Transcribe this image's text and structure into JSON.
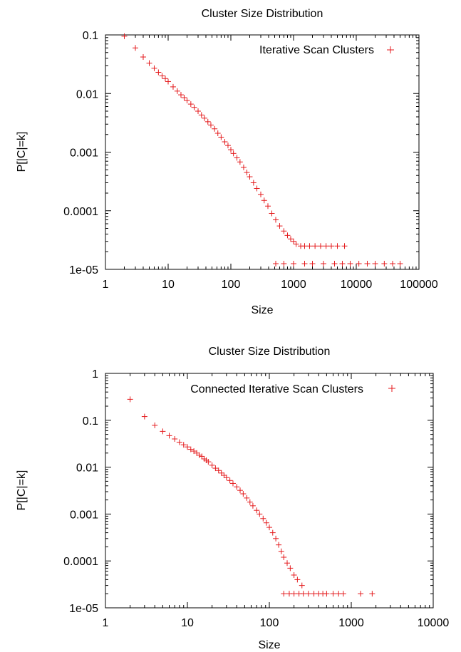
{
  "chart_data": [
    {
      "type": "scatter",
      "title": "Cluster Size Distribution",
      "xlabel": "Size",
      "ylabel": "P[|C|=k]",
      "x_scale": "log",
      "y_scale": "log",
      "xlim": [
        1,
        100000
      ],
      "ylim": [
        1e-05,
        0.1
      ],
      "x_ticks": [
        {
          "value": 1,
          "label": "1"
        },
        {
          "value": 10,
          "label": "10"
        },
        {
          "value": 100,
          "label": "100"
        },
        {
          "value": 1000,
          "label": "1000"
        },
        {
          "value": 10000,
          "label": "10000"
        },
        {
          "value": 100000,
          "label": "100000"
        }
      ],
      "y_ticks": [
        {
          "value": 1e-05,
          "label": "1e-05"
        },
        {
          "value": 0.0001,
          "label": "0.0001"
        },
        {
          "value": 0.001,
          "label": "0.001"
        },
        {
          "value": 0.01,
          "label": "0.01"
        },
        {
          "value": 0.1,
          "label": "0.1"
        }
      ],
      "legend_position": "top-right",
      "series": [
        {
          "name": "Iterative Scan Clusters",
          "color": "#e41a1c",
          "marker": "plus",
          "points": [
            [
              2,
              0.095
            ],
            [
              3,
              0.06
            ],
            [
              4,
              0.042
            ],
            [
              5,
              0.033
            ],
            [
              6,
              0.027
            ],
            [
              7,
              0.023
            ],
            [
              8,
              0.02
            ],
            [
              9,
              0.018
            ],
            [
              10,
              0.016
            ],
            [
              12,
              0.013
            ],
            [
              14,
              0.011
            ],
            [
              16,
              0.0095
            ],
            [
              18,
              0.0085
            ],
            [
              20,
              0.0076
            ],
            [
              23,
              0.0066
            ],
            [
              26,
              0.0058
            ],
            [
              30,
              0.005
            ],
            [
              34,
              0.0043
            ],
            [
              38,
              0.0038
            ],
            [
              43,
              0.0033
            ],
            [
              48,
              0.0029
            ],
            [
              55,
              0.0025
            ],
            [
              62,
              0.0021
            ],
            [
              70,
              0.0018
            ],
            [
              80,
              0.0015
            ],
            [
              90,
              0.0013
            ],
            [
              100,
              0.0011
            ],
            [
              110,
              0.00095
            ],
            [
              125,
              0.0008
            ],
            [
              140,
              0.00068
            ],
            [
              160,
              0.00055
            ],
            [
              180,
              0.00045
            ],
            [
              200,
              0.00038
            ],
            [
              230,
              0.0003
            ],
            [
              260,
              0.00024
            ],
            [
              300,
              0.00019
            ],
            [
              340,
              0.00015
            ],
            [
              390,
              0.00012
            ],
            [
              450,
              9e-05
            ],
            [
              520,
              7e-05
            ],
            [
              600,
              5.5e-05
            ],
            [
              700,
              4.5e-05
            ],
            [
              800,
              3.8e-05
            ],
            [
              900,
              3.3e-05
            ],
            [
              1000,
              3e-05
            ],
            [
              1100,
              2.7e-05
            ],
            [
              1300,
              2.5e-05
            ],
            [
              1500,
              2.5e-05
            ],
            [
              1800,
              2.5e-05
            ],
            [
              2200,
              2.5e-05
            ],
            [
              2700,
              2.5e-05
            ],
            [
              3300,
              2.5e-05
            ],
            [
              4000,
              2.5e-05
            ],
            [
              5000,
              2.5e-05
            ],
            [
              6500,
              2.5e-05
            ],
            [
              520,
              1.25e-05
            ],
            [
              700,
              1.25e-05
            ],
            [
              1000,
              1.25e-05
            ],
            [
              1500,
              1.25e-05
            ],
            [
              2000,
              1.25e-05
            ],
            [
              3000,
              1.25e-05
            ],
            [
              4500,
              1.25e-05
            ],
            [
              6000,
              1.25e-05
            ],
            [
              8000,
              1.25e-05
            ],
            [
              11000,
              1.25e-05
            ],
            [
              15000,
              1.25e-05
            ],
            [
              20000,
              1.25e-05
            ],
            [
              28000,
              1.25e-05
            ],
            [
              38000,
              1.25e-05
            ],
            [
              50000,
              1.25e-05
            ]
          ]
        }
      ]
    },
    {
      "type": "scatter",
      "title": "Cluster Size Distribution",
      "xlabel": "Size",
      "ylabel": "P[|C|=k]",
      "x_scale": "log",
      "y_scale": "log",
      "xlim": [
        1,
        10000
      ],
      "ylim": [
        1e-05,
        1
      ],
      "x_ticks": [
        {
          "value": 1,
          "label": "1"
        },
        {
          "value": 10,
          "label": "10"
        },
        {
          "value": 100,
          "label": "100"
        },
        {
          "value": 1000,
          "label": "1000"
        },
        {
          "value": 10000,
          "label": "10000"
        }
      ],
      "y_ticks": [
        {
          "value": 1e-05,
          "label": "1e-05"
        },
        {
          "value": 0.0001,
          "label": "0.0001"
        },
        {
          "value": 0.001,
          "label": "0.001"
        },
        {
          "value": 0.01,
          "label": "0.01"
        },
        {
          "value": 0.1,
          "label": "0.1"
        },
        {
          "value": 1,
          "label": "1"
        }
      ],
      "legend_position": "top-right",
      "series": [
        {
          "name": "Connected Iterative Scan Clusters",
          "color": "#e41a1c",
          "marker": "plus",
          "points": [
            [
              2,
              0.28
            ],
            [
              3,
              0.12
            ],
            [
              4,
              0.078
            ],
            [
              5,
              0.058
            ],
            [
              6,
              0.047
            ],
            [
              7,
              0.04
            ],
            [
              8,
              0.034
            ],
            [
              9,
              0.03
            ],
            [
              10,
              0.027
            ],
            [
              11,
              0.024
            ],
            [
              12,
              0.022
            ],
            [
              13,
              0.02
            ],
            [
              14,
              0.018
            ],
            [
              15,
              0.017
            ],
            [
              16,
              0.015
            ],
            [
              17,
              0.014
            ],
            [
              18,
              0.013
            ],
            [
              20,
              0.011
            ],
            [
              22,
              0.0095
            ],
            [
              24,
              0.0085
            ],
            [
              26,
              0.0075
            ],
            [
              28,
              0.0067
            ],
            [
              30,
              0.006
            ],
            [
              33,
              0.0052
            ],
            [
              36,
              0.0045
            ],
            [
              40,
              0.0038
            ],
            [
              44,
              0.0032
            ],
            [
              48,
              0.0027
            ],
            [
              53,
              0.0022
            ],
            [
              58,
              0.0018
            ],
            [
              63,
              0.0015
            ],
            [
              70,
              0.0012
            ],
            [
              76,
              0.001
            ],
            [
              84,
              0.0008
            ],
            [
              92,
              0.00065
            ],
            [
              100,
              0.00052
            ],
            [
              110,
              0.0004
            ],
            [
              120,
              0.0003
            ],
            [
              130,
              0.00022
            ],
            [
              140,
              0.00016
            ],
            [
              150,
              0.00012
            ],
            [
              165,
              9e-05
            ],
            [
              180,
              7e-05
            ],
            [
              200,
              5e-05
            ],
            [
              220,
              4e-05
            ],
            [
              250,
              3e-05
            ],
            [
              150,
              2e-05
            ],
            [
              175,
              2e-05
            ],
            [
              200,
              2e-05
            ],
            [
              230,
              2e-05
            ],
            [
              260,
              2e-05
            ],
            [
              300,
              2e-05
            ],
            [
              350,
              2e-05
            ],
            [
              400,
              2e-05
            ],
            [
              450,
              2e-05
            ],
            [
              500,
              2e-05
            ],
            [
              600,
              2e-05
            ],
            [
              700,
              2e-05
            ],
            [
              800,
              2e-05
            ],
            [
              1300,
              2e-05
            ],
            [
              1800,
              2e-05
            ]
          ]
        }
      ]
    }
  ]
}
